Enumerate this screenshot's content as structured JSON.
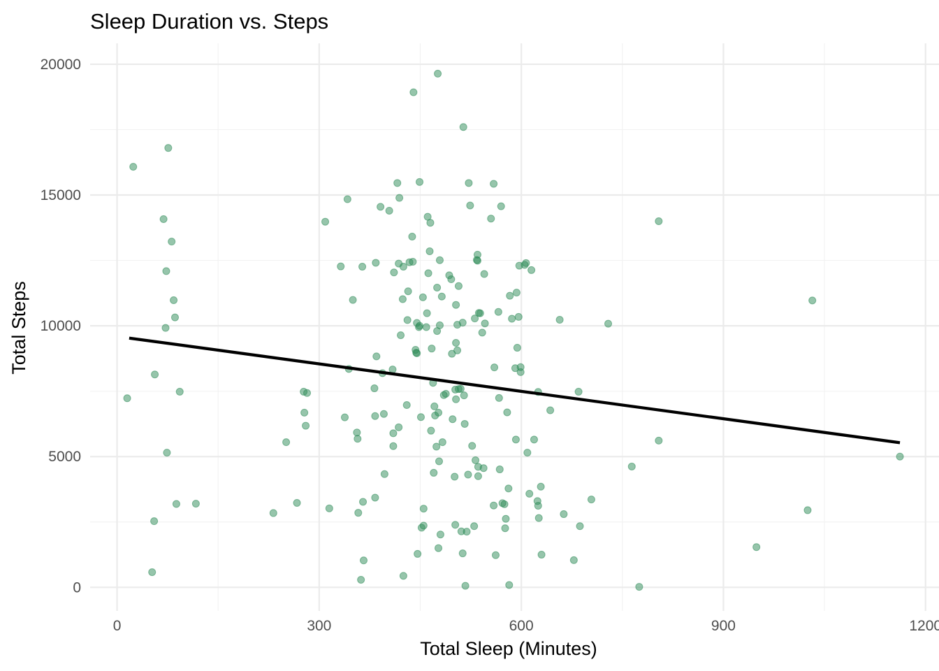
{
  "chart_data": {
    "type": "scatter",
    "title": "Sleep Duration vs. Steps",
    "xlabel": "Total Sleep (Minutes)",
    "ylabel": "Total Steps",
    "xlim": [
      -40,
      1220
    ],
    "ylim": [
      -900,
      20800
    ],
    "x_ticks": [
      0,
      300,
      600,
      900,
      1200
    ],
    "y_ticks": [
      0,
      5000,
      10000,
      15000,
      20000
    ],
    "x_tick_labels": [
      "0",
      "300",
      "600",
      "900",
      "1200"
    ],
    "y_tick_labels": [
      "0",
      "5000",
      "10000",
      "15000",
      "20000"
    ],
    "grid": true,
    "point_color": "#2e8b57",
    "line_color": "#000000",
    "trend_line": {
      "x": [
        18,
        1162
      ],
      "y": [
        9530,
        5530
      ]
    },
    "points": [
      {
        "x": 15,
        "y": 7230
      },
      {
        "x": 24,
        "y": 16080
      },
      {
        "x": 52,
        "y": 580
      },
      {
        "x": 55,
        "y": 2530
      },
      {
        "x": 56,
        "y": 8140
      },
      {
        "x": 69,
        "y": 14080
      },
      {
        "x": 72,
        "y": 9920
      },
      {
        "x": 73,
        "y": 12090
      },
      {
        "x": 74,
        "y": 5150
      },
      {
        "x": 76,
        "y": 16800
      },
      {
        "x": 81,
        "y": 13220
      },
      {
        "x": 84,
        "y": 10980
      },
      {
        "x": 86,
        "y": 10320
      },
      {
        "x": 88,
        "y": 3190
      },
      {
        "x": 93,
        "y": 7480
      },
      {
        "x": 117,
        "y": 3200
      },
      {
        "x": 232,
        "y": 2840
      },
      {
        "x": 251,
        "y": 5550
      },
      {
        "x": 267,
        "y": 3230
      },
      {
        "x": 277,
        "y": 7480
      },
      {
        "x": 278,
        "y": 6680
      },
      {
        "x": 280,
        "y": 6180
      },
      {
        "x": 282,
        "y": 7430
      },
      {
        "x": 309,
        "y": 13980
      },
      {
        "x": 315,
        "y": 3020
      },
      {
        "x": 332,
        "y": 12270
      },
      {
        "x": 338,
        "y": 6500
      },
      {
        "x": 342,
        "y": 14840
      },
      {
        "x": 344,
        "y": 8350
      },
      {
        "x": 350,
        "y": 10990
      },
      {
        "x": 356,
        "y": 5920
      },
      {
        "x": 357,
        "y": 5680
      },
      {
        "x": 358,
        "y": 2850
      },
      {
        "x": 362,
        "y": 290
      },
      {
        "x": 364,
        "y": 12260
      },
      {
        "x": 365,
        "y": 3270
      },
      {
        "x": 366,
        "y": 1030
      },
      {
        "x": 382,
        "y": 7610
      },
      {
        "x": 383,
        "y": 6550
      },
      {
        "x": 383,
        "y": 3430
      },
      {
        "x": 384,
        "y": 12410
      },
      {
        "x": 385,
        "y": 8830
      },
      {
        "x": 391,
        "y": 14550
      },
      {
        "x": 394,
        "y": 8190
      },
      {
        "x": 396,
        "y": 6630
      },
      {
        "x": 397,
        "y": 4330
      },
      {
        "x": 404,
        "y": 14400
      },
      {
        "x": 409,
        "y": 8330
      },
      {
        "x": 410,
        "y": 5400
      },
      {
        "x": 410,
        "y": 5890
      },
      {
        "x": 411,
        "y": 12040
      },
      {
        "x": 416,
        "y": 15460
      },
      {
        "x": 418,
        "y": 6120
      },
      {
        "x": 418,
        "y": 12380
      },
      {
        "x": 419,
        "y": 14890
      },
      {
        "x": 421,
        "y": 9640
      },
      {
        "x": 424,
        "y": 11020
      },
      {
        "x": 425,
        "y": 12260
      },
      {
        "x": 425,
        "y": 440
      },
      {
        "x": 430,
        "y": 6970
      },
      {
        "x": 431,
        "y": 10220
      },
      {
        "x": 432,
        "y": 11320
      },
      {
        "x": 434,
        "y": 12430
      },
      {
        "x": 438,
        "y": 13410
      },
      {
        "x": 439,
        "y": 12450
      },
      {
        "x": 440,
        "y": 18930
      },
      {
        "x": 443,
        "y": 9080
      },
      {
        "x": 444,
        "y": 8970
      },
      {
        "x": 445,
        "y": 8950
      },
      {
        "x": 445,
        "y": 10110
      },
      {
        "x": 446,
        "y": 1280
      },
      {
        "x": 448,
        "y": 9950
      },
      {
        "x": 449,
        "y": 10000
      },
      {
        "x": 449,
        "y": 15500
      },
      {
        "x": 451,
        "y": 6510
      },
      {
        "x": 452,
        "y": 2280
      },
      {
        "x": 454,
        "y": 11090
      },
      {
        "x": 455,
        "y": 2360
      },
      {
        "x": 455,
        "y": 3010
      },
      {
        "x": 459,
        "y": 9950
      },
      {
        "x": 460,
        "y": 10480
      },
      {
        "x": 461,
        "y": 14170
      },
      {
        "x": 462,
        "y": 12010
      },
      {
        "x": 464,
        "y": 12850
      },
      {
        "x": 465,
        "y": 13940
      },
      {
        "x": 466,
        "y": 5990
      },
      {
        "x": 467,
        "y": 9130
      },
      {
        "x": 469,
        "y": 7820
      },
      {
        "x": 470,
        "y": 4380
      },
      {
        "x": 471,
        "y": 6920
      },
      {
        "x": 472,
        "y": 6570
      },
      {
        "x": 474,
        "y": 5380
      },
      {
        "x": 475,
        "y": 11460
      },
      {
        "x": 475,
        "y": 9800
      },
      {
        "x": 476,
        "y": 19640
      },
      {
        "x": 477,
        "y": 1500
      },
      {
        "x": 477,
        "y": 6680
      },
      {
        "x": 478,
        "y": 4820
      },
      {
        "x": 479,
        "y": 12510
      },
      {
        "x": 479,
        "y": 10020
      },
      {
        "x": 480,
        "y": 2020
      },
      {
        "x": 482,
        "y": 11120
      },
      {
        "x": 483,
        "y": 5550
      },
      {
        "x": 485,
        "y": 7350
      },
      {
        "x": 488,
        "y": 7400
      },
      {
        "x": 493,
        "y": 11930
      },
      {
        "x": 496,
        "y": 11780
      },
      {
        "x": 497,
        "y": 8930
      },
      {
        "x": 498,
        "y": 6430
      },
      {
        "x": 501,
        "y": 4230
      },
      {
        "x": 502,
        "y": 2390
      },
      {
        "x": 502,
        "y": 7560
      },
      {
        "x": 503,
        "y": 9350
      },
      {
        "x": 503,
        "y": 7190
      },
      {
        "x": 503,
        "y": 10800
      },
      {
        "x": 505,
        "y": 10040
      },
      {
        "x": 505,
        "y": 9060
      },
      {
        "x": 507,
        "y": 11520
      },
      {
        "x": 507,
        "y": 7580
      },
      {
        "x": 510,
        "y": 7590
      },
      {
        "x": 511,
        "y": 2140
      },
      {
        "x": 513,
        "y": 10120
      },
      {
        "x": 513,
        "y": 1300
      },
      {
        "x": 514,
        "y": 17600
      },
      {
        "x": 515,
        "y": 7340
      },
      {
        "x": 516,
        "y": 6250
      },
      {
        "x": 517,
        "y": 60
      },
      {
        "x": 519,
        "y": 2130
      },
      {
        "x": 521,
        "y": 4310
      },
      {
        "x": 522,
        "y": 15460
      },
      {
        "x": 524,
        "y": 14600
      },
      {
        "x": 527,
        "y": 5410
      },
      {
        "x": 530,
        "y": 2340
      },
      {
        "x": 531,
        "y": 10280
      },
      {
        "x": 532,
        "y": 4860
      },
      {
        "x": 534,
        "y": 12520
      },
      {
        "x": 535,
        "y": 12720
      },
      {
        "x": 535,
        "y": 12490
      },
      {
        "x": 536,
        "y": 4250
      },
      {
        "x": 536,
        "y": 4610
      },
      {
        "x": 537,
        "y": 10490
      },
      {
        "x": 539,
        "y": 10480
      },
      {
        "x": 542,
        "y": 9740
      },
      {
        "x": 544,
        "y": 4560
      },
      {
        "x": 545,
        "y": 11980
      },
      {
        "x": 546,
        "y": 10090
      },
      {
        "x": 555,
        "y": 14100
      },
      {
        "x": 559,
        "y": 3130
      },
      {
        "x": 559,
        "y": 15430
      },
      {
        "x": 560,
        "y": 8410
      },
      {
        "x": 562,
        "y": 1230
      },
      {
        "x": 566,
        "y": 10530
      },
      {
        "x": 567,
        "y": 7240
      },
      {
        "x": 568,
        "y": 4510
      },
      {
        "x": 570,
        "y": 14570
      },
      {
        "x": 572,
        "y": 3220
      },
      {
        "x": 575,
        "y": 3180
      },
      {
        "x": 576,
        "y": 2260
      },
      {
        "x": 577,
        "y": 2620
      },
      {
        "x": 579,
        "y": 6690
      },
      {
        "x": 581,
        "y": 3780
      },
      {
        "x": 582,
        "y": 90
      },
      {
        "x": 583,
        "y": 11150
      },
      {
        "x": 586,
        "y": 10270
      },
      {
        "x": 591,
        "y": 8380
      },
      {
        "x": 592,
        "y": 5650
      },
      {
        "x": 593,
        "y": 11270
      },
      {
        "x": 594,
        "y": 9160
      },
      {
        "x": 596,
        "y": 10340
      },
      {
        "x": 597,
        "y": 12300
      },
      {
        "x": 599,
        "y": 8230
      },
      {
        "x": 599,
        "y": 8420
      },
      {
        "x": 605,
        "y": 12330
      },
      {
        "x": 607,
        "y": 12400
      },
      {
        "x": 609,
        "y": 5150
      },
      {
        "x": 612,
        "y": 3580
      },
      {
        "x": 615,
        "y": 12130
      },
      {
        "x": 619,
        "y": 5650
      },
      {
        "x": 624,
        "y": 3300
      },
      {
        "x": 625,
        "y": 7470
      },
      {
        "x": 625,
        "y": 3120
      },
      {
        "x": 626,
        "y": 2650
      },
      {
        "x": 629,
        "y": 3850
      },
      {
        "x": 630,
        "y": 1250
      },
      {
        "x": 643,
        "y": 6770
      },
      {
        "x": 657,
        "y": 10230
      },
      {
        "x": 663,
        "y": 2800
      },
      {
        "x": 678,
        "y": 1040
      },
      {
        "x": 685,
        "y": 7480
      },
      {
        "x": 687,
        "y": 2340
      },
      {
        "x": 704,
        "y": 3360
      },
      {
        "x": 729,
        "y": 10080
      },
      {
        "x": 764,
        "y": 4620
      },
      {
        "x": 775,
        "y": 20
      },
      {
        "x": 804,
        "y": 14000
      },
      {
        "x": 804,
        "y": 5610
      },
      {
        "x": 949,
        "y": 1540
      },
      {
        "x": 1025,
        "y": 2950
      },
      {
        "x": 1032,
        "y": 10970
      },
      {
        "x": 1162,
        "y": 5000
      }
    ]
  }
}
